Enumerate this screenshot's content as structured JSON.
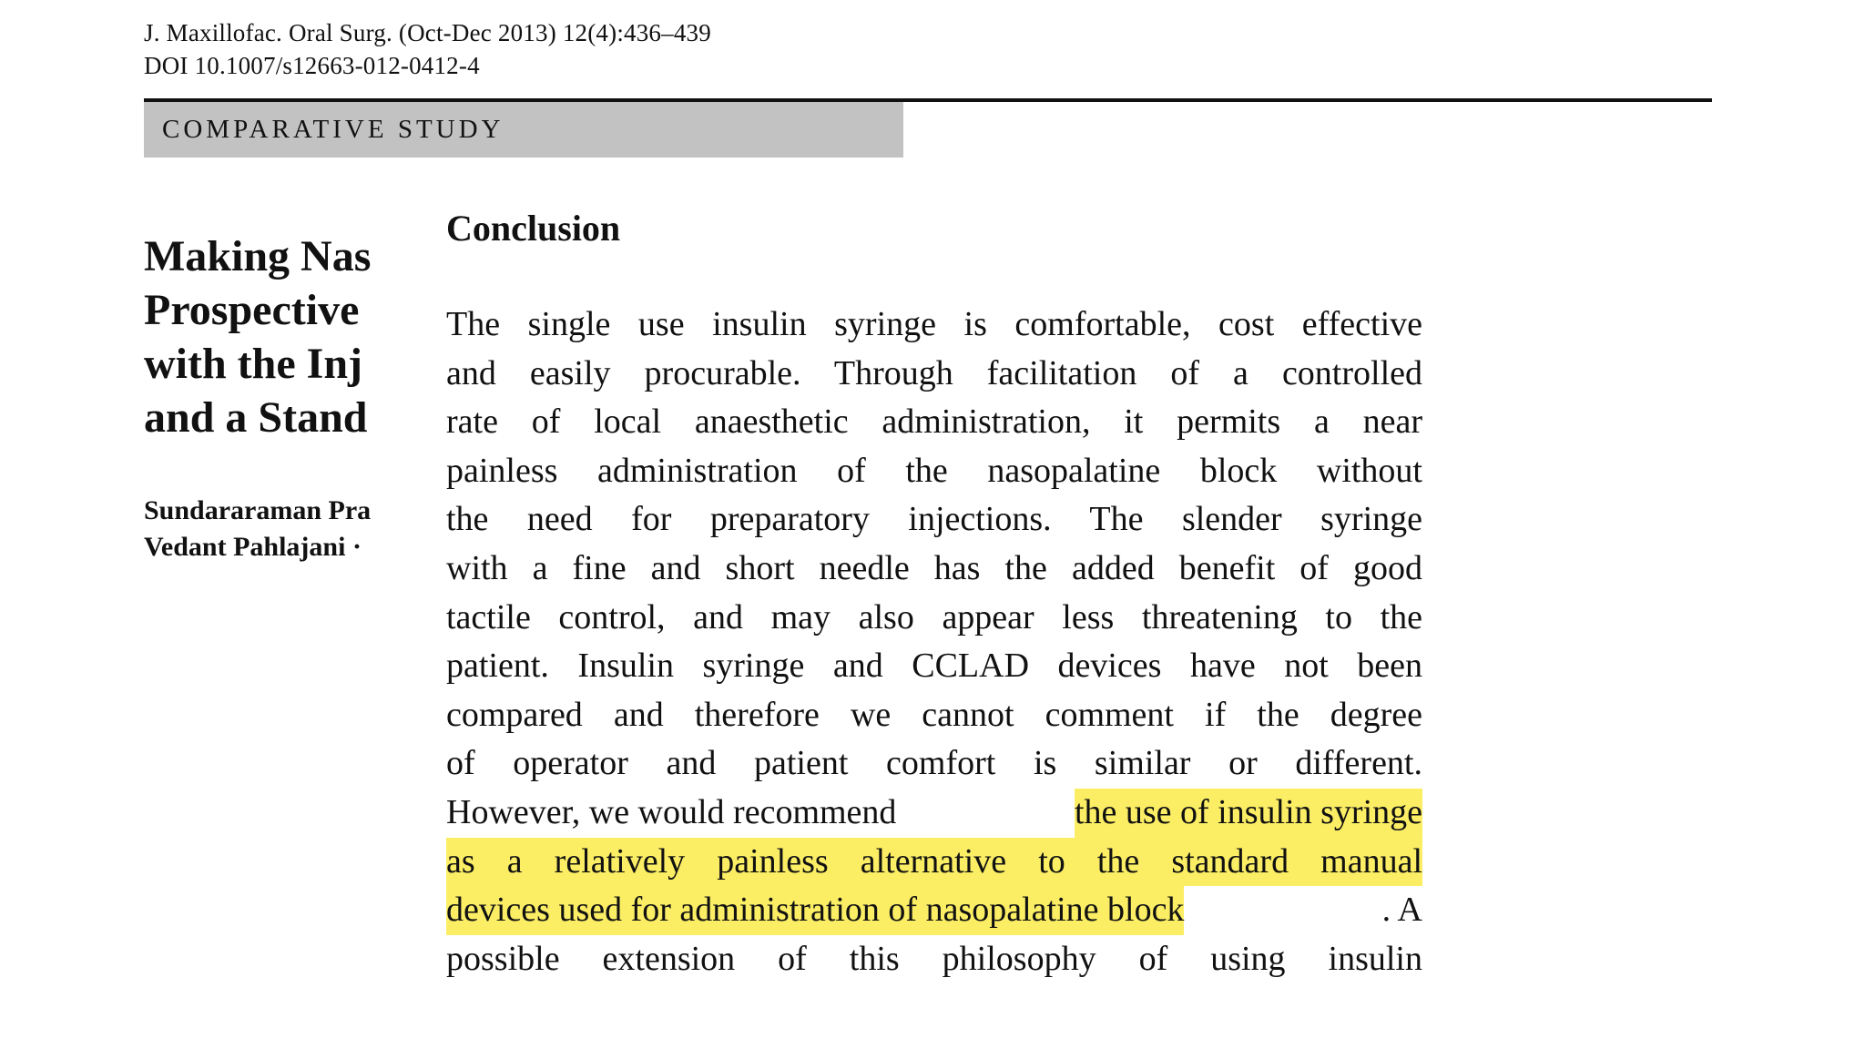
{
  "header": {
    "citation": "J. Maxillofac. Oral Surg. (Oct-Dec 2013) 12(4):436–439",
    "doi": "DOI 10.1007/s12663-012-0412-4",
    "section_label": "COMPARATIVE STUDY"
  },
  "article": {
    "title_lines": [
      "Making Nas",
      "Prospective",
      "with the Inj",
      "and a Stand"
    ],
    "author_lines": [
      "Sundararaman Pra",
      "Vedant Pahlajani ·"
    ]
  },
  "conclusion": {
    "heading": "Conclusion",
    "lines": [
      "The single use insulin syringe is comfortable, cost effective",
      "and easily procurable. Through facilitation of a controlled",
      "rate of local anaesthetic administration, it permits a near",
      "painless administration of the nasopalatine block without",
      "the need for preparatory injections. The slender syringe",
      "with a fine and short needle has the added benefit of good",
      "tactile control, and may also appear less threatening to the",
      "patient. Insulin syringe and CCLAD devices have not been",
      "compared and therefore we cannot comment if the degree",
      "of operator and patient comfort is similar or different."
    ],
    "line_11_plain": "However, we would recommend",
    "line_11_highlight": "the use of insulin syringe",
    "line_12_highlight": "as a relatively painless alternative to the standard manual",
    "line_13_highlight": "devices used for administration of nasopalatine block",
    "line_13_plain": ". A",
    "line_14": "possible extension of this philosophy of using insulin"
  },
  "colors": {
    "highlight": "#fbee65",
    "banner": "#c2c2c2"
  }
}
